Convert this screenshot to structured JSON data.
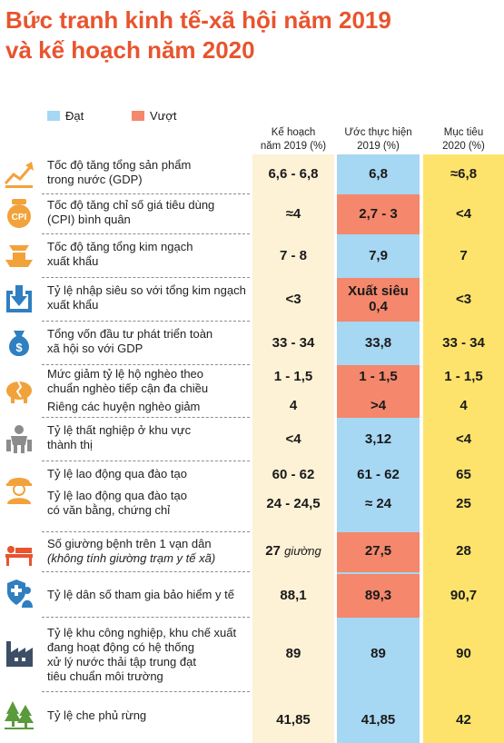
{
  "title": {
    "line1": "Bức tranh kinh tế-xã hội năm 2019",
    "line2": "và kế hoạch năm 2020"
  },
  "legend": {
    "reached": "Đạt",
    "exceeded": "Vượt"
  },
  "colors": {
    "title": "#e8542e",
    "plan_col": "#fdf1d6",
    "reached": "#a6d7f3",
    "exceeded": "#f4876c",
    "target_col": "#fde36b",
    "icon": "#f2a23a"
  },
  "columns": {
    "plan": {
      "line1": "Kế hoạch",
      "line2": "năm 2019 (%)"
    },
    "estimate": {
      "line1": "Ước thực hiện",
      "line2": "2019 (%)"
    },
    "target": {
      "line1": "Mục tiêu",
      "line2": "2020 (%)"
    }
  },
  "rows": [
    {
      "icon": "growth-chart-icon",
      "label1": "Tốc độ tăng tổng sản phẩm",
      "label2": "trong nước (GDP)",
      "plan": "6,6 - 6,8",
      "est": "6,8",
      "tgt": "≈6,8"
    },
    {
      "icon": "cpi-coin-icon",
      "label1": "Tốc độ tăng chỉ số giá tiêu dùng",
      "label2": "(CPI) bình quân",
      "plan": "≈4",
      "est": "2,7 - 3",
      "tgt": "<4"
    },
    {
      "icon": "export-ship-icon",
      "label1": "Tốc độ tăng tổng kim ngạch",
      "label2": "xuất khẩu",
      "plan": "7 - 8",
      "est": "7,9",
      "tgt": "7"
    },
    {
      "icon": "import-arrow-icon",
      "label1": "Tỷ lệ nhập siêu so với tổng kim ngạch",
      "label2": "xuất khẩu",
      "plan": "<3",
      "est1": "Xuất siêu",
      "est2": "0,4",
      "tgt": "<3"
    },
    {
      "icon": "money-bag-icon",
      "label1": "Tổng vốn đầu tư phát triển toàn",
      "label2": "xã hội so với GDP",
      "plan": "33 - 34",
      "est": "33,8",
      "tgt": "33 - 34"
    },
    {
      "icon": "broken-piggy-bank-icon",
      "label1": "Mức giảm tỷ lệ hộ nghèo theo",
      "label2": "chuẩn nghèo tiếp cận đa chiều",
      "plan": "1 - 1,5",
      "est": "1 - 1,5",
      "tgt": "1 - 1,5",
      "sub_label": "Riêng các huyện nghèo giảm",
      "sub_plan": "4",
      "sub_est": ">4",
      "sub_tgt": "4"
    },
    {
      "icon": "unemployed-worker-icon",
      "label1": "Tỷ lệ thất nghiệp ở khu vực",
      "label2": "thành thị",
      "plan": "<4",
      "est": "3,12",
      "tgt": "<4"
    },
    {
      "icon": "trained-worker-icon",
      "label1": "Tỷ lệ lao động qua đào tạo",
      "plan": "60 - 62",
      "est": "61 - 62",
      "tgt": "65",
      "sub_label1": "Tỷ lệ lao động qua đào tạo",
      "sub_label2": "có văn bằng, chứng chỉ",
      "sub_plan": "24 - 24,5",
      "sub_est": "≈ 24",
      "sub_tgt": "25"
    },
    {
      "icon": "hospital-bed-icon",
      "label1": "Số giường bệnh trên 1 vạn dân",
      "label2": "(không tính giường trạm y tế xã)",
      "plan_num": "27",
      "plan_unit": "giường",
      "est": "27,5",
      "tgt": "28"
    },
    {
      "icon": "health-insurance-icon",
      "label1": "Tỷ lệ dân số tham gia bảo hiểm y tế",
      "plan": "88,1",
      "est": "89,3",
      "tgt": "90,7"
    },
    {
      "icon": "industrial-zone-icon",
      "label1": "Tỷ lệ khu công nghiệp, khu chế xuất",
      "label2": "đang hoạt động có hệ thống",
      "label3": "xử lý nước thải tập trung đạt",
      "label4": "tiêu chuẩn môi trường",
      "plan": "89",
      "est": "89",
      "tgt": "90"
    },
    {
      "icon": "forest-icon",
      "label1": "Tỷ lệ che phủ rừng",
      "plan": "41,85",
      "est": "41,85",
      "tgt": "42"
    }
  ]
}
